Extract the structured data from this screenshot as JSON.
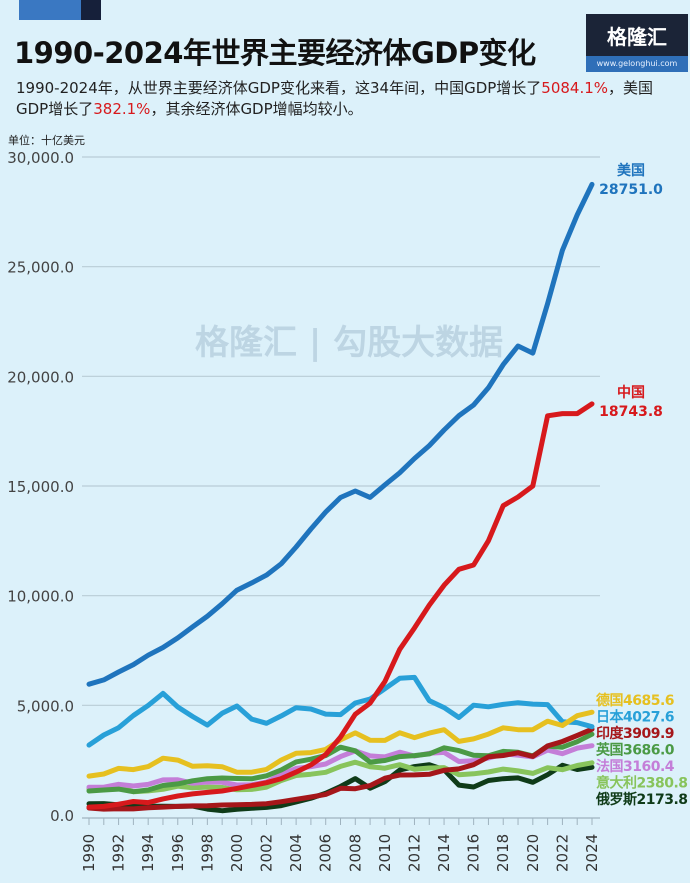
{
  "header": {
    "title": "1990-2024年世界主要经济体GDP变化",
    "subtitle_part1": "1990-2024年，从世界主要经济体GDP变化来看，这34年间，中国GDP增长了",
    "china_growth": "5084.1%",
    "subtitle_part2": "，美国GDP增长了",
    "us_growth": "382.1%",
    "subtitle_part3": "，其余经济体GDP增幅均较小。",
    "logo_text": "格隆汇",
    "logo_url": "www.gelonghui.com",
    "watermark": "格隆汇 | 勾股大数据"
  },
  "chart_data": {
    "type": "line",
    "title": "1990-2024年世界主要经济体GDP变化",
    "ylabel": "单位：十亿美元",
    "ylim": [
      0,
      30000
    ],
    "yticks": [
      "0.0",
      "5,000.0",
      "10,000.0",
      "15,000.0",
      "20,000.0",
      "25,000.0",
      "30,000.0"
    ],
    "ytick_values": [
      0,
      5000,
      10000,
      15000,
      20000,
      25000,
      30000
    ],
    "x": [
      1990,
      1991,
      1992,
      1993,
      1994,
      1995,
      1996,
      1997,
      1998,
      1999,
      2000,
      2001,
      2002,
      2003,
      2004,
      2005,
      2006,
      2007,
      2008,
      2009,
      2010,
      2011,
      2012,
      2013,
      2014,
      2015,
      2016,
      2017,
      2018,
      2019,
      2020,
      2021,
      2022,
      2023,
      2024
    ],
    "xtick_labels": [
      "1990",
      "1992",
      "1994",
      "1996",
      "1998",
      "2000",
      "2002",
      "2004",
      "2006",
      "2008",
      "2010",
      "2012",
      "2014",
      "2016",
      "2018",
      "2020",
      "2022",
      "2024"
    ],
    "grid": true,
    "legend": "end-of-line labels",
    "series": [
      {
        "name": "美国",
        "end_label": "28751.0",
        "color": "#1f74bd",
        "values": [
          5963,
          6158,
          6520,
          6858,
          7287,
          7639,
          8073,
          8577,
          9062,
          9631,
          10251,
          10582,
          10936,
          11458,
          12217,
          13039,
          13815,
          14474,
          14770,
          14478,
          15049,
          15600,
          16254,
          16843,
          17551,
          18206,
          18695,
          19477,
          20533,
          21381,
          21060,
          23315,
          25744,
          27360,
          28751
        ]
      },
      {
        "name": "中国",
        "end_label": "18743.8",
        "color": "#d7191c",
        "values": [
          361,
          391,
          493,
          617,
          564,
          735,
          864,
          962,
          1029,
          1094,
          1211,
          1339,
          1471,
          1660,
          1955,
          2286,
          2752,
          3550,
          4594,
          5101,
          6087,
          7552,
          8532,
          9570,
          10476,
          11200,
          11400,
          12500,
          14100,
          14500,
          15000,
          18200,
          18300,
          18300,
          18744
        ]
      },
      {
        "name": "德国",
        "end_label": "4685.6",
        "color": "#e6c020",
        "values": [
          1772,
          1869,
          2124,
          2071,
          2206,
          2591,
          2504,
          2219,
          2243,
          2200,
          1950,
          1951,
          2079,
          2506,
          2815,
          2846,
          2993,
          3425,
          3745,
          3411,
          3400,
          3750,
          3528,
          3733,
          3890,
          3357,
          3469,
          3690,
          3975,
          3889,
          3887,
          4278,
          4082,
          4526,
          4686
        ]
      },
      {
        "name": "日本",
        "end_label": "4027.6",
        "color": "#28a0d8",
        "values": [
          3185,
          3648,
          3980,
          4537,
          4999,
          5546,
          4923,
          4493,
          4098,
          4636,
          4968,
          4374,
          4183,
          4519,
          4893,
          4831,
          4601,
          4579,
          5106,
          5289,
          5759,
          6233,
          6272,
          5212,
          4897,
          4444,
          5004,
          4931,
          5041,
          5118,
          5055,
          5034,
          4256,
          4213,
          4028
        ]
      },
      {
        "name": "印度",
        "end_label": "3909.9",
        "color": "#a5161a",
        "values": [
          321,
          270,
          288,
          279,
          327,
          360,
          392,
          415,
          421,
          458,
          468,
          485,
          515,
          608,
          709,
          820,
          940,
          1217,
          1199,
          1342,
          1676,
          1823,
          1828,
          1857,
          2039,
          2104,
          2295,
          2652,
          2713,
          2836,
          2672,
          3150,
          3353,
          3625,
          3910
        ]
      },
      {
        "name": "英国",
        "end_label": "3686.0",
        "color": "#4b9a45",
        "values": [
          1093,
          1142,
          1179,
          1061,
          1140,
          1344,
          1419,
          1561,
          1653,
          1687,
          1665,
          1649,
          1785,
          2054,
          2422,
          2543,
          2709,
          3091,
          2929,
          2412,
          2485,
          2663,
          2707,
          2784,
          3065,
          2934,
          2722,
          2699,
          2900,
          2857,
          2696,
          3143,
          3089,
          3340,
          3686
        ]
      },
      {
        "name": "法国",
        "end_label": "3160.4",
        "color": "#c47ed8",
        "values": [
          1269,
          1269,
          1401,
          1323,
          1393,
          1601,
          1606,
          1452,
          1503,
          1493,
          1366,
          1382,
          1500,
          1848,
          2124,
          2204,
          2325,
          2663,
          2924,
          2694,
          2647,
          2865,
          2684,
          2812,
          2856,
          2439,
          2472,
          2595,
          2790,
          2729,
          2647,
          2960,
          2796,
          3052,
          3160
        ]
      },
      {
        "name": "意大利",
        "end_label": "2380.8",
        "color": "#88c45c",
        "values": [
          1181,
          1242,
          1318,
          1063,
          1101,
          1174,
          1313,
          1241,
          1270,
          1253,
          1147,
          1169,
          1271,
          1573,
          1803,
          1858,
          1949,
          2214,
          2408,
          2199,
          2136,
          2295,
          2087,
          2141,
          2162,
          1837,
          1877,
          1961,
          2092,
          2011,
          1897,
          2155,
          2067,
          2255,
          2381
        ]
      },
      {
        "name": "俄罗斯",
        "end_label": "2173.8",
        "color": "#0f3b18",
        "values": [
          517,
          518,
          460,
          435,
          395,
          396,
          392,
          405,
          271,
          196,
          260,
          307,
          345,
          430,
          591,
          764,
          990,
          1300,
          1661,
          1223,
          1525,
          2046,
          2208,
          2292,
          2059,
          1364,
          1277,
          1575,
          1657,
          1693,
          1489,
          1837,
          2266,
          2076,
          2174
        ]
      }
    ]
  }
}
